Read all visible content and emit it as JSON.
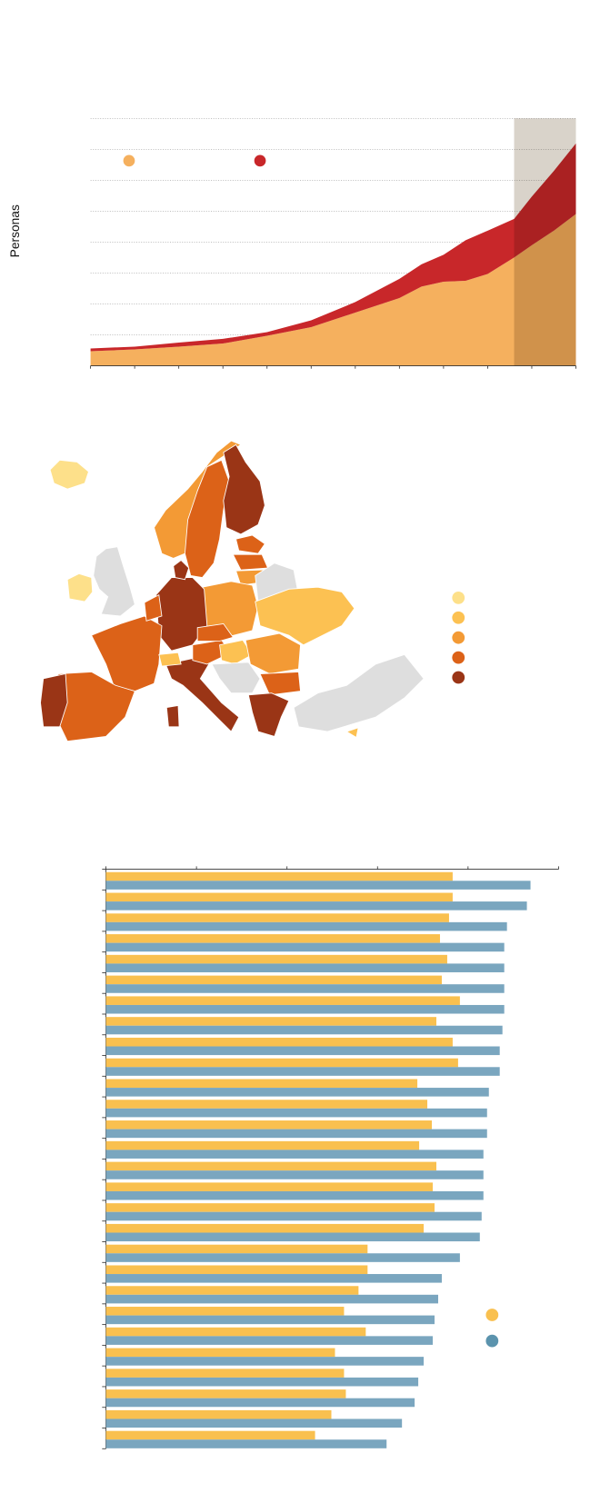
{
  "chart_data": [
    {
      "type": "area",
      "ylabel": "Personas",
      "x": [
        0,
        1,
        2,
        3,
        4,
        5,
        6,
        7,
        7.5,
        8,
        8.5,
        9,
        9.6,
        10,
        10.5,
        11
      ],
      "series": [
        {
          "color": "#f5b05e",
          "values": [
            0.47,
            0.53,
            0.62,
            0.72,
            0.97,
            1.25,
            1.72,
            2.19,
            2.56,
            2.72,
            2.75,
            2.97,
            3.5,
            3.9,
            4.37,
            4.91
          ]
        },
        {
          "color": "#c8272a",
          "values": [
            0.09,
            0.09,
            0.13,
            0.15,
            0.12,
            0.22,
            0.34,
            0.62,
            0.72,
            0.87,
            1.31,
            1.4,
            1.25,
            1.57,
            1.93,
            2.28
          ]
        }
      ],
      "xlim": [
        0,
        11
      ],
      "xticks": [
        0,
        1,
        2,
        3,
        4,
        5,
        6,
        7,
        8,
        9,
        10,
        11
      ],
      "ylim": [
        0,
        8
      ],
      "yticks": [
        0,
        1,
        2,
        3,
        4,
        5,
        6,
        7,
        8
      ],
      "grid": true,
      "shaded_x": [
        9.6,
        11
      ],
      "shade_color": "#d9d3ca"
    },
    {
      "type": "map",
      "classes": [
        "#fde08a",
        "#fcc152",
        "#f39a35",
        "#dc6218",
        "#9a3516"
      ],
      "no_data_color": "#dedede",
      "regions": [
        0,
        0,
        null,
        2,
        3,
        4,
        3,
        3,
        2,
        2,
        4,
        4,
        null,
        1,
        3,
        3,
        3,
        4,
        4,
        3,
        1,
        3,
        1,
        2,
        null,
        3,
        4,
        null,
        4,
        1
      ]
    },
    {
      "type": "barh",
      "categories": [
        null,
        null,
        null,
        null,
        null,
        null,
        null,
        null,
        null,
        null,
        null,
        null,
        null,
        null,
        null,
        null,
        null,
        null,
        null,
        null,
        null,
        null,
        null,
        null,
        null,
        null,
        null,
        null
      ],
      "series": [
        {
          "color": "#f9c04f",
          "values": [
            3.83,
            3.83,
            3.79,
            3.69,
            3.77,
            3.71,
            3.91,
            3.65,
            3.83,
            3.89,
            3.44,
            3.55,
            3.6,
            3.46,
            3.65,
            3.61,
            3.63,
            3.51,
            2.89,
            2.89,
            2.79,
            2.63,
            2.87,
            2.53,
            2.63,
            2.65,
            2.49,
            2.31
          ]
        },
        {
          "color": "#7aa6bf",
          "values": [
            4.69,
            4.65,
            4.43,
            4.4,
            4.4,
            4.4,
            4.4,
            4.38,
            4.35,
            4.35,
            4.23,
            4.21,
            4.21,
            4.17,
            4.17,
            4.17,
            4.15,
            4.13,
            3.91,
            3.71,
            3.67,
            3.63,
            3.61,
            3.51,
            3.45,
            3.41,
            3.27,
            3.1
          ]
        }
      ],
      "legend_colors": [
        "#f9c04f",
        "#5b93ad"
      ],
      "xlim": [
        0,
        5
      ],
      "xticks": [
        0,
        1,
        2,
        3,
        4,
        5
      ]
    }
  ]
}
